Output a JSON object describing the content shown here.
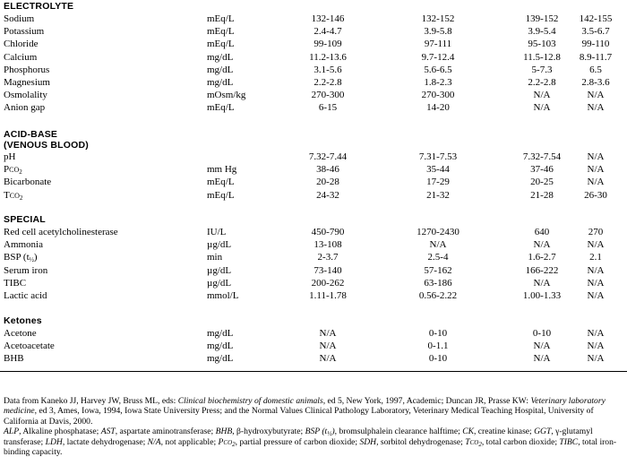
{
  "sections": {
    "electrolyte": {
      "title": "ELECTROLYTE",
      "rows": [
        {
          "name": "Sodium",
          "unit": "mEq/L",
          "v1": "132-146",
          "v2": "132-152",
          "v3": "139-152",
          "v4": "142-155"
        },
        {
          "name": "Potassium",
          "unit": "mEq/L",
          "v1": "2.4-4.7",
          "v2": "3.9-5.8",
          "v3": "3.9-5.4",
          "v4": "3.5-6.7"
        },
        {
          "name": "Chloride",
          "unit": "mEq/L",
          "v1": "99-109",
          "v2": "97-111",
          "v3": "95-103",
          "v4": "99-110"
        },
        {
          "name": "Calcium",
          "unit": "mg/dL",
          "v1": "11.2-13.6",
          "v2": "9.7-12.4",
          "v3": "11.5-12.8",
          "v4": "8.9-11.7"
        },
        {
          "name": "Phosphorus",
          "unit": "mg/dL",
          "v1": "3.1-5.6",
          "v2": "5.6-6.5",
          "v3": "5-7.3",
          "v4": "6.5"
        },
        {
          "name": "Magnesium",
          "unit": "mg/dL",
          "v1": "2.2-2.8",
          "v2": "1.8-2.3",
          "v3": "2.2-2.8",
          "v4": "2.8-3.6"
        },
        {
          "name": "Osmolality",
          "unit": "mOsm/kg",
          "v1": "270-300",
          "v2": "270-300",
          "v3": "N/A",
          "v4": "N/A"
        },
        {
          "name": "Anion gap",
          "unit": "mEq/L",
          "v1": "6-15",
          "v2": "14-20",
          "v3": "N/A",
          "v4": "N/A"
        }
      ]
    },
    "acidbase": {
      "title": "ACID-BASE",
      "subtitle": "(VENOUS BLOOD)",
      "rows": [
        {
          "name": "pH",
          "unit": "",
          "v1": "7.32-7.44",
          "v2": "7.31-7.53",
          "v3": "7.32-7.54",
          "v4": "N/A"
        },
        {
          "name_html": "P<span class=\"sc\">co</span><sub>2</sub>",
          "name": "Pco2",
          "unit": "mm Hg",
          "v1": "38-46",
          "v2": "35-44",
          "v3": "37-46",
          "v4": "N/A"
        },
        {
          "name": "Bicarbonate",
          "unit": "mEq/L",
          "v1": "20-28",
          "v2": "17-29",
          "v3": "20-25",
          "v4": "N/A"
        },
        {
          "name": "Tco2",
          "unit": "mEq/L",
          "v1": "24-32",
          "v2": "21-32",
          "v3": "21-28",
          "v4": "26-30"
        }
      ]
    },
    "special": {
      "title": "SPECIAL",
      "rows": [
        {
          "name": "Red cell acetylcholinesterase",
          "unit": "IU/L",
          "v1": "450-790",
          "v2": "1270-2430",
          "v3": "640",
          "v4": "270"
        },
        {
          "name": "Ammonia",
          "unit": "µg/dL",
          "v1": "13-108",
          "v2": "N/A",
          "v3": "N/A",
          "v4": "N/A"
        },
        {
          "name": "BSP (t½)",
          "unit": "min",
          "v1": "2-3.7",
          "v2": "2.5-4",
          "v3": "1.6-2.7",
          "v4": "2.1"
        },
        {
          "name": "Serum iron",
          "unit": "µg/dL",
          "v1": "73-140",
          "v2": "57-162",
          "v3": "166-222",
          "v4": "N/A"
        },
        {
          "name": "TIBC",
          "unit": "µg/dL",
          "v1": "200-262",
          "v2": "63-186",
          "v3": "N/A",
          "v4": "N/A"
        },
        {
          "name": "Lactic acid",
          "unit": "mmol/L",
          "v1": "1.11-1.78",
          "v2": "0.56-2.22",
          "v3": "1.00-1.33",
          "v4": "N/A"
        }
      ]
    },
    "ketones": {
      "title": "Ketones",
      "rows": [
        {
          "name": "Acetone",
          "unit": "mg/dL",
          "v1": "N/A",
          "v2": "0-10",
          "v3": "0-10",
          "v4": "N/A"
        },
        {
          "name": "Acetoacetate",
          "unit": "mg/dL",
          "v1": "N/A",
          "v2": "0-1.1",
          "v3": "N/A",
          "v4": "N/A"
        },
        {
          "name": "BHB",
          "unit": "mg/dL",
          "v1": "N/A",
          "v2": "0-10",
          "v3": "N/A",
          "v4": "N/A"
        }
      ]
    }
  },
  "footnotes": {
    "source": "Data from Kaneko JJ, Harvey JW, Bruss ML, eds: Clinical biochemistry of domestic animals, ed 5, New York, 1997, Academic; Duncan JR, Prasse KW: Veterinary laboratory medicine, ed 3, Ames, Iowa, 1994, Iowa State University Press; and the Normal Values Clinical Pathology Laboratory, Veterinary Medical Teaching Hospital, University of California at Davis, 2000.",
    "abbreviations": "ALP, Alkaline phosphatase; AST, aspartate aminotransferase; BHB, β-hydroxybutyrate; BSP (t½), bromsulphalein clearance halftime; CK, creatine kinase; GGT, γ-glutamyl transferase; LDH, lactate dehydrogenase; N/A, not applicable; Pco2, partial pressure of carbon dioxide; SDH, sorbitol dehydrogenase; Tco2, total carbon dioxide; TIBC, total iron-binding capacity."
  }
}
